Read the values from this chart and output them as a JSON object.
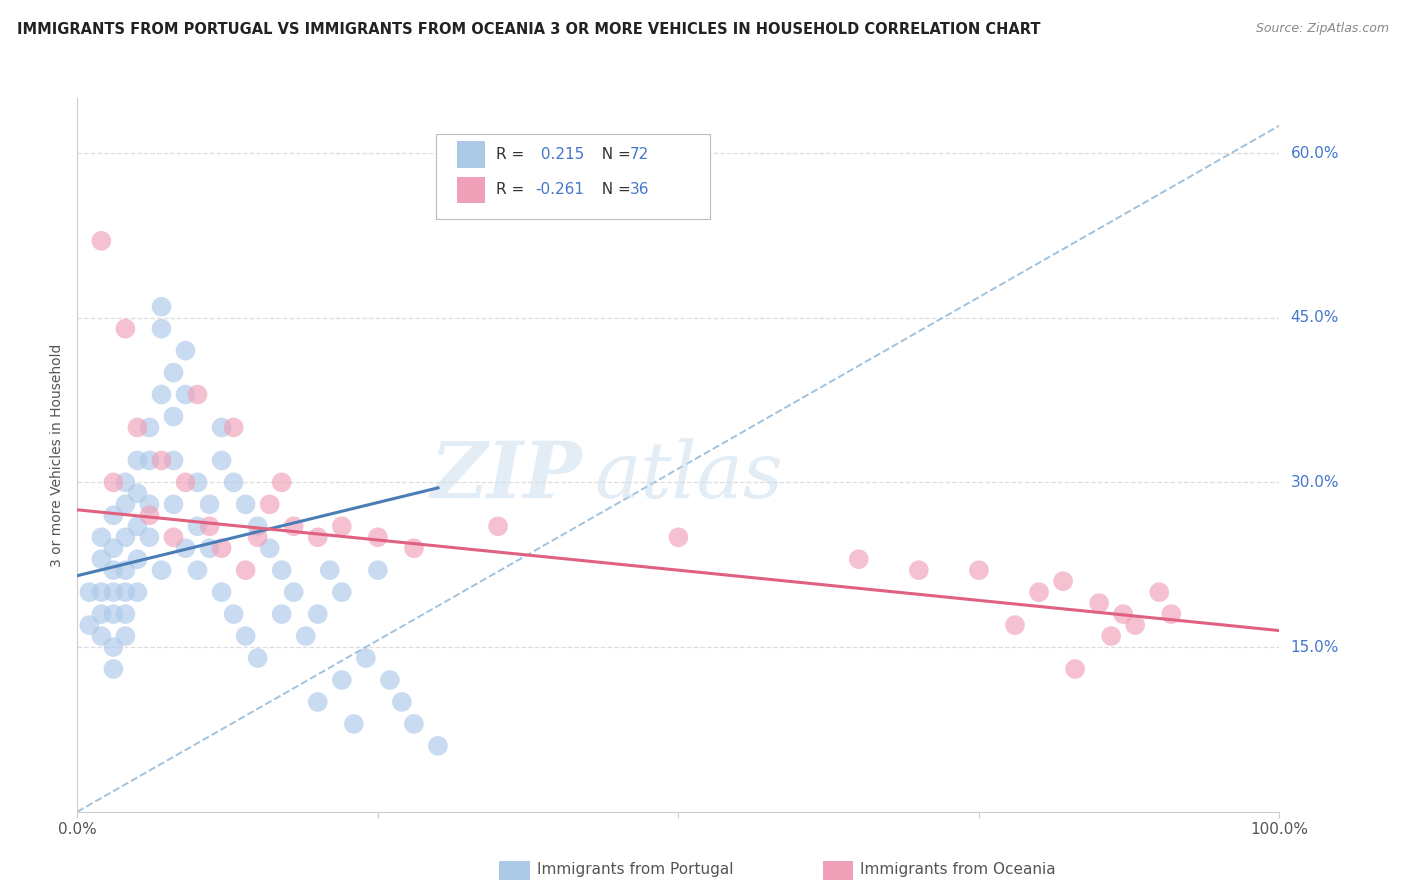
{
  "title": "IMMIGRANTS FROM PORTUGAL VS IMMIGRANTS FROM OCEANIA 3 OR MORE VEHICLES IN HOUSEHOLD CORRELATION CHART",
  "source": "Source: ZipAtlas.com",
  "ylabel": "3 or more Vehicles in Household",
  "xlim": [
    0.0,
    1.0
  ],
  "ylim": [
    0.0,
    0.65
  ],
  "color_blue": "#adc9e8",
  "color_pink": "#f0a0b8",
  "line_blue": "#4a7db5",
  "line_pink": "#e06080",
  "line_dashed_color": "#90b8d8",
  "legend_text_color": "#4477cc",
  "grid_color": "#dddddd",
  "background_color": "#ffffff",
  "blue_points_x": [
    0.01,
    0.01,
    0.02,
    0.02,
    0.02,
    0.02,
    0.02,
    0.03,
    0.03,
    0.03,
    0.03,
    0.03,
    0.03,
    0.03,
    0.04,
    0.04,
    0.04,
    0.04,
    0.04,
    0.04,
    0.04,
    0.05,
    0.05,
    0.05,
    0.05,
    0.05,
    0.06,
    0.06,
    0.06,
    0.06,
    0.07,
    0.07,
    0.07,
    0.07,
    0.08,
    0.08,
    0.08,
    0.08,
    0.09,
    0.09,
    0.09,
    0.1,
    0.1,
    0.1,
    0.11,
    0.11,
    0.12,
    0.12,
    0.12,
    0.13,
    0.13,
    0.14,
    0.14,
    0.15,
    0.15,
    0.16,
    0.17,
    0.17,
    0.18,
    0.19,
    0.2,
    0.2,
    0.21,
    0.22,
    0.22,
    0.23,
    0.24,
    0.25,
    0.26,
    0.27,
    0.28,
    0.3
  ],
  "blue_points_y": [
    0.2,
    0.17,
    0.25,
    0.23,
    0.2,
    0.18,
    0.16,
    0.27,
    0.24,
    0.22,
    0.2,
    0.18,
    0.15,
    0.13,
    0.3,
    0.28,
    0.25,
    0.22,
    0.2,
    0.18,
    0.16,
    0.32,
    0.29,
    0.26,
    0.23,
    0.2,
    0.35,
    0.32,
    0.28,
    0.25,
    0.38,
    0.46,
    0.44,
    0.22,
    0.4,
    0.36,
    0.32,
    0.28,
    0.42,
    0.38,
    0.24,
    0.3,
    0.26,
    0.22,
    0.28,
    0.24,
    0.35,
    0.32,
    0.2,
    0.3,
    0.18,
    0.28,
    0.16,
    0.26,
    0.14,
    0.24,
    0.22,
    0.18,
    0.2,
    0.16,
    0.18,
    0.1,
    0.22,
    0.2,
    0.12,
    0.08,
    0.14,
    0.22,
    0.12,
    0.1,
    0.08,
    0.06
  ],
  "pink_points_x": [
    0.02,
    0.03,
    0.04,
    0.05,
    0.06,
    0.07,
    0.08,
    0.09,
    0.1,
    0.11,
    0.12,
    0.13,
    0.14,
    0.15,
    0.16,
    0.17,
    0.18,
    0.2,
    0.22,
    0.25,
    0.28,
    0.35,
    0.5,
    0.65,
    0.7,
    0.8,
    0.82,
    0.85,
    0.87,
    0.9,
    0.75,
    0.78,
    0.88,
    0.91,
    0.83,
    0.86
  ],
  "pink_points_y": [
    0.52,
    0.3,
    0.44,
    0.35,
    0.27,
    0.32,
    0.25,
    0.3,
    0.38,
    0.26,
    0.24,
    0.35,
    0.22,
    0.25,
    0.28,
    0.3,
    0.26,
    0.25,
    0.26,
    0.25,
    0.24,
    0.26,
    0.25,
    0.23,
    0.22,
    0.2,
    0.21,
    0.19,
    0.18,
    0.2,
    0.22,
    0.17,
    0.17,
    0.18,
    0.13,
    0.16
  ],
  "blue_line_x0": 0.0,
  "blue_line_y0": 0.215,
  "blue_line_x1": 0.3,
  "blue_line_y1": 0.295,
  "pink_line_x0": 0.0,
  "pink_line_y0": 0.275,
  "pink_line_x1": 1.0,
  "pink_line_y1": 0.165,
  "dash_line_x0": 0.0,
  "dash_line_y0": 0.0,
  "dash_line_x1": 1.0,
  "dash_line_y1": 0.625
}
